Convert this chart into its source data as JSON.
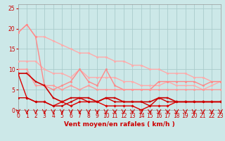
{
  "background_color": "#cce8e8",
  "grid_color": "#aacccc",
  "xlabel": "Vent moyen/en rafales ( km/h )",
  "xlim": [
    0,
    23
  ],
  "ylim": [
    0,
    26
  ],
  "yticks": [
    0,
    5,
    10,
    15,
    20,
    25
  ],
  "xticks": [
    0,
    1,
    2,
    3,
    4,
    5,
    6,
    7,
    8,
    9,
    10,
    11,
    12,
    13,
    14,
    15,
    16,
    17,
    18,
    19,
    20,
    21,
    22,
    23
  ],
  "lines": [
    {
      "x": [
        0,
        1,
        2,
        3,
        4,
        5,
        6,
        7,
        8,
        9,
        10,
        11,
        12,
        13,
        14,
        15,
        16,
        17,
        18,
        19,
        20,
        21,
        22,
        23
      ],
      "y": [
        19,
        21,
        18,
        18,
        17,
        16,
        15,
        14,
        14,
        13,
        13,
        12,
        12,
        11,
        11,
        10,
        10,
        9,
        9,
        9,
        8,
        8,
        7,
        7
      ],
      "color": "#ffaaaa",
      "lw": 1.0,
      "marker": "o",
      "ms": 1.8
    },
    {
      "x": [
        0,
        1,
        2,
        3,
        4,
        5,
        6,
        7,
        8,
        9,
        10,
        11,
        12,
        13,
        14,
        15,
        16,
        17,
        18,
        19,
        20,
        21,
        22,
        23
      ],
      "y": [
        12,
        12,
        12,
        10,
        9,
        9,
        8,
        10,
        8,
        8,
        8,
        8,
        7,
        7,
        6,
        6,
        6,
        7,
        6,
        6,
        6,
        5,
        6,
        7
      ],
      "color": "#ffaaaa",
      "lw": 1.0,
      "marker": "o",
      "ms": 1.8
    },
    {
      "x": [
        0,
        1,
        2,
        3,
        4,
        5,
        6,
        7,
        8,
        9,
        10,
        11,
        12,
        13,
        14,
        15,
        16,
        17,
        18,
        19,
        20,
        21,
        22,
        23
      ],
      "y": [
        19,
        21,
        18,
        6,
        5,
        6,
        7,
        10,
        7,
        6,
        10,
        6,
        5,
        5,
        5,
        5,
        7,
        7,
        7,
        7,
        7,
        6,
        7,
        7
      ],
      "color": "#ff8888",
      "lw": 1.0,
      "marker": "o",
      "ms": 1.8
    },
    {
      "x": [
        0,
        1,
        2,
        3,
        4,
        5,
        6,
        7,
        8,
        9,
        10,
        11,
        12,
        13,
        14,
        15,
        16,
        17,
        18,
        19,
        20,
        21,
        22,
        23
      ],
      "y": [
        10,
        10,
        6,
        6,
        6,
        5,
        6,
        5,
        6,
        5,
        5,
        5,
        5,
        5,
        5,
        5,
        5,
        5,
        5,
        5,
        5,
        5,
        5,
        5
      ],
      "color": "#ff9999",
      "lw": 1.0,
      "marker": "o",
      "ms": 1.8
    },
    {
      "x": [
        0,
        1,
        2,
        3,
        4,
        5,
        6,
        7,
        8,
        9,
        10,
        11,
        12,
        13,
        14,
        15,
        16,
        17,
        18,
        19,
        20,
        21,
        22,
        23
      ],
      "y": [
        9,
        9,
        7,
        6,
        3,
        2,
        3,
        3,
        3,
        2,
        3,
        3,
        2,
        2,
        2,
        2,
        3,
        3,
        2,
        2,
        2,
        2,
        2,
        2
      ],
      "color": "#cc0000",
      "lw": 1.2,
      "marker": "s",
      "ms": 2.0
    },
    {
      "x": [
        0,
        1,
        2,
        3,
        4,
        5,
        6,
        7,
        8,
        9,
        10,
        11,
        12,
        13,
        14,
        15,
        16,
        17,
        18,
        19,
        20,
        21,
        22,
        23
      ],
      "y": [
        9,
        3,
        2,
        2,
        1,
        2,
        1,
        2,
        2,
        2,
        1,
        1,
        1,
        1,
        0,
        1,
        1,
        1,
        2,
        2,
        2,
        2,
        2,
        2
      ],
      "color": "#dd0000",
      "lw": 1.0,
      "marker": "D",
      "ms": 1.8
    },
    {
      "x": [
        0,
        1,
        2,
        3,
        4,
        5,
        6,
        7,
        8,
        9,
        10,
        11,
        12,
        13,
        14,
        15,
        16,
        17,
        18,
        19,
        20,
        21,
        22,
        23
      ],
      "y": [
        3,
        3,
        2,
        2,
        1,
        1,
        2,
        3,
        2,
        2,
        3,
        2,
        2,
        2,
        2,
        1,
        3,
        2,
        2,
        2,
        2,
        2,
        2,
        2
      ],
      "color": "#cc0000",
      "lw": 1.0,
      "marker": "o",
      "ms": 1.8
    }
  ],
  "tick_fontsize": 5.5,
  "label_fontsize": 6.5,
  "tick_color": "#cc0000",
  "xlabel_color": "#cc0000"
}
